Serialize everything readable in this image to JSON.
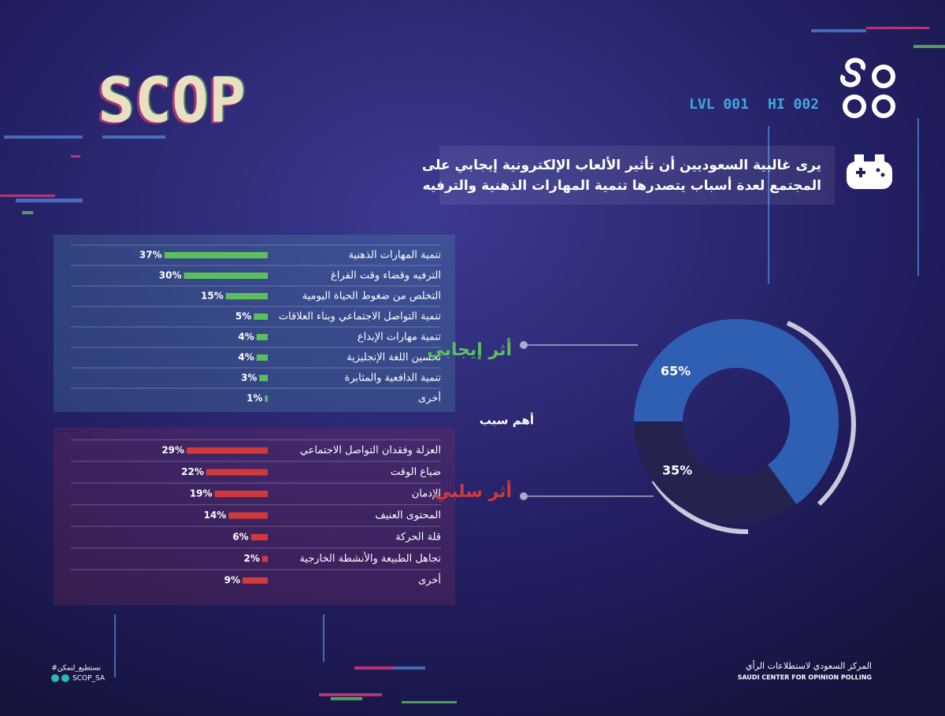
{
  "header": {
    "logo": "SCOP",
    "level": "LVL 001",
    "hi": "HI 002"
  },
  "title": [
    "يرى غالبية السعوديين أن تأثير الألعاب الإلكترونية إيجابي على",
    "المجتمع لعدة أسباب يتصدرها تنمية المهارات الذهنية والترفيه"
  ],
  "center_label": "أهم سبب",
  "chart_data": [
    {
      "type": "bar",
      "color": "#5bc05b",
      "categories": [
        "تنمية المهارات الذهنية",
        "الترفيه وقضاء وقت الفراغ",
        "التخلص من ضغوط الحياة اليومية",
        "تنمية التواصل الاجتماعي وبناء العلاقات",
        "تنمية مهارات الإبداع",
        "تحسين اللغة الإنجليزية",
        "تنمية الدافعية والمثابرة",
        "أخرى"
      ],
      "values": [
        37,
        30,
        15,
        5,
        4,
        4,
        3,
        1
      ],
      "value_labels": [
        "37%",
        "30%",
        "15%",
        "5%",
        "4%",
        "4%",
        "3%",
        "1%"
      ]
    },
    {
      "type": "bar",
      "color": "#d23a3a",
      "categories": [
        "العزلة وفقدان التواصل الاجتماعي",
        "ضياع الوقت",
        "الإدمان",
        "المحتوى العنيف",
        "قلة الحركة",
        "تجاهل الطبيعة والأنشطة الخارجية",
        "أخرى"
      ],
      "values": [
        29,
        22,
        19,
        14,
        6,
        2,
        9
      ],
      "value_labels": [
        "29%",
        "22%",
        "19%",
        "14%",
        "6%",
        "2%",
        "9%"
      ]
    },
    {
      "type": "pie",
      "categories": [
        "أثر إيجابي",
        "أثر سلبي"
      ],
      "values": [
        65,
        35
      ],
      "value_labels": [
        "65%",
        "35%"
      ],
      "colors": [
        "#2f5fb2",
        "#24234f"
      ],
      "label_colors": [
        "#5bc05b",
        "#d23a3a"
      ]
    }
  ],
  "footer": {
    "hashtag": "#نستطيع_لنمكن",
    "handle": "SCOP_SA",
    "org_ar": "المركز السعودي لاستطلاعات الرأي",
    "org_en": "SAUDI CENTER FOR OPINION POLLING"
  }
}
